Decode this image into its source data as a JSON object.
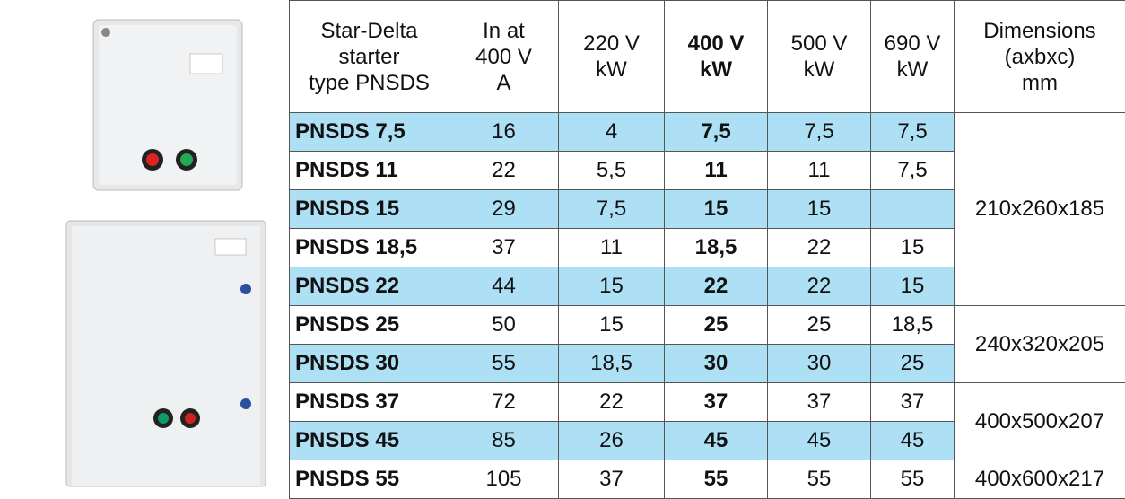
{
  "table": {
    "header": [
      "Star-Delta\nstarter\ntype PNSDS",
      "In at\n400 V\nA",
      "220 V\nkW",
      "400 V\nkW",
      "500 V\nkW",
      "690 V\nkW",
      "Dimensions\n(axbxc)\nmm"
    ],
    "rows": [
      [
        "PNSDS 7,5",
        "16",
        "4",
        "7,5",
        "7,5",
        "7,5"
      ],
      [
        "PNSDS 11",
        "22",
        "5,5",
        "11",
        "11",
        "7,5"
      ],
      [
        "PNSDS 15",
        "29",
        "7,5",
        "15",
        "15",
        null
      ],
      [
        "PNSDS 18,5",
        "37",
        "11",
        "18,5",
        "22",
        "15"
      ],
      [
        "PNSDS 22",
        "44",
        "15",
        "22",
        "22",
        "15"
      ],
      [
        "PNSDS 25",
        "50",
        "15",
        "25",
        "25",
        "18,5"
      ],
      [
        "PNSDS 30",
        "55",
        "18,5",
        "30",
        "30",
        "25"
      ],
      [
        "PNSDS 37",
        "72",
        "22",
        "37",
        "37",
        "37"
      ],
      [
        "PNSDS 45",
        "85",
        "26",
        "45",
        "45",
        "45"
      ],
      [
        "PNSDS 55",
        "105",
        "37",
        "55",
        "55",
        "55"
      ]
    ],
    "dimensions": [
      "210x260x185",
      "240x320x205",
      "400x500x207",
      "400x600x217"
    ]
  }
}
